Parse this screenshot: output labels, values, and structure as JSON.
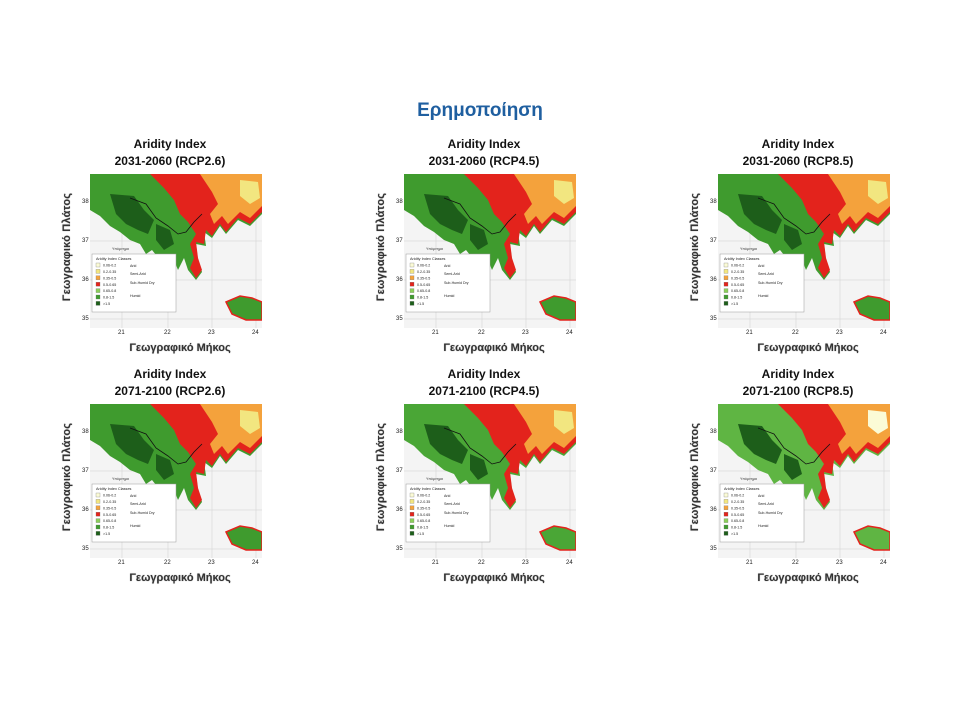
{
  "slide": {
    "title": "Ερημοποίηση"
  },
  "axes": {
    "ylabel": "Γεωγραφικό Πλάτος",
    "xlabel": "Γεωγραφικό Μήκος",
    "lat_ticks": [
      "38",
      "37",
      "36",
      "35"
    ],
    "lon_ticks": [
      "21",
      "22",
      "23",
      "24"
    ]
  },
  "legend": {
    "caption": "Υπόμνημα",
    "title": "Aridity Index Classes",
    "classes": [
      {
        "range": "0.06-0.2",
        "color": "#fbfbd6"
      },
      {
        "range": "0.2-0.35",
        "color": "#f2e680"
      },
      {
        "range": "0.35-0.5",
        "color": "#f4a23c"
      },
      {
        "range": "0.5-0.65",
        "color": "#e3231c"
      },
      {
        "range": "0.65-0.8",
        "color": "#8ccf5a"
      },
      {
        "range": "0.8-1.5",
        "color": "#3f9b2e"
      },
      {
        "range": ">1.5",
        "color": "#1d5e1a"
      }
    ],
    "groups": [
      "Arid",
      "Semi-Arid",
      "Sub-Humid Dry",
      "Humid"
    ]
  },
  "panels": [
    {
      "title": "Aridity Index",
      "period": "2031-2060 (RCP2.6)"
    },
    {
      "title": "Aridity Index",
      "period": "2031-2060 (RCP4.5)"
    },
    {
      "title": "Aridity Index",
      "period": "2031-2060 (RCP8.5)"
    },
    {
      "title": "Aridity Index",
      "period": "2071-2100 (RCP2.6)"
    },
    {
      "title": "Aridity Index",
      "period": "2071-2100 (RCP4.5)"
    },
    {
      "title": "Aridity Index",
      "period": "2071-2100 (RCP8.5)"
    }
  ]
}
